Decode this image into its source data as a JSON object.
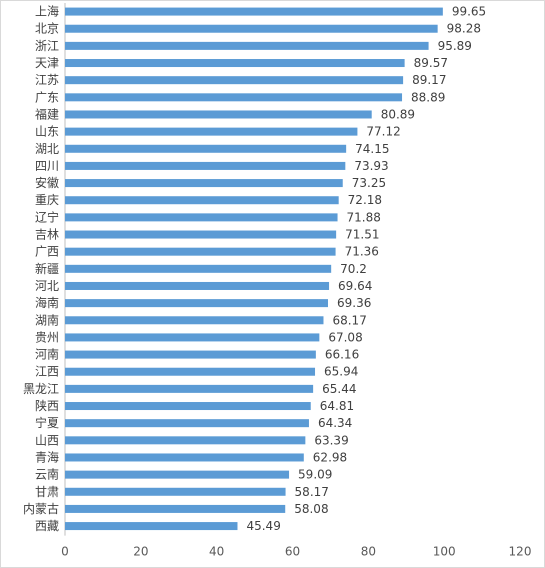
{
  "chart_data": {
    "type": "bar",
    "orientation": "horizontal",
    "categories": [
      "上海",
      "北京",
      "浙江",
      "天津",
      "江苏",
      "广东",
      "福建",
      "山东",
      "湖北",
      "四川",
      "安徽",
      "重庆",
      "辽宁",
      "吉林",
      "广西",
      "新疆",
      "河北",
      "海南",
      "湖南",
      "贵州",
      "河南",
      "江西",
      "黑龙江",
      "陕西",
      "宁夏",
      "山西",
      "青海",
      "云南",
      "甘肃",
      "内蒙古",
      "西藏"
    ],
    "values": [
      99.65,
      98.28,
      95.89,
      89.57,
      89.17,
      88.89,
      80.89,
      77.12,
      74.15,
      73.93,
      73.25,
      72.18,
      71.88,
      71.51,
      71.36,
      70.2,
      69.64,
      69.36,
      68.17,
      67.08,
      66.16,
      65.94,
      65.44,
      64.81,
      64.34,
      63.39,
      62.98,
      59.09,
      58.17,
      58.08,
      45.49
    ],
    "value_labels": [
      "99.65",
      "98.28",
      "95.89",
      "89.57",
      "89.17",
      "88.89",
      "80.89",
      "77.12",
      "74.15",
      "73.93",
      "73.25",
      "72.18",
      "71.88",
      "71.51",
      "71.36",
      "70.2",
      "69.64",
      "69.36",
      "68.17",
      "67.08",
      "66.16",
      "65.94",
      "65.44",
      "64.81",
      "64.34",
      "63.39",
      "62.98",
      "59.09",
      "58.17",
      "58.08",
      "45.49"
    ],
    "xlim": [
      0,
      120
    ],
    "x_ticks": [
      "0",
      "20",
      "40",
      "60",
      "80",
      "100",
      "120"
    ],
    "grid": false,
    "legend": "none",
    "bar_color": "#5b9bd5",
    "title": "",
    "xlabel": "",
    "ylabel": ""
  }
}
